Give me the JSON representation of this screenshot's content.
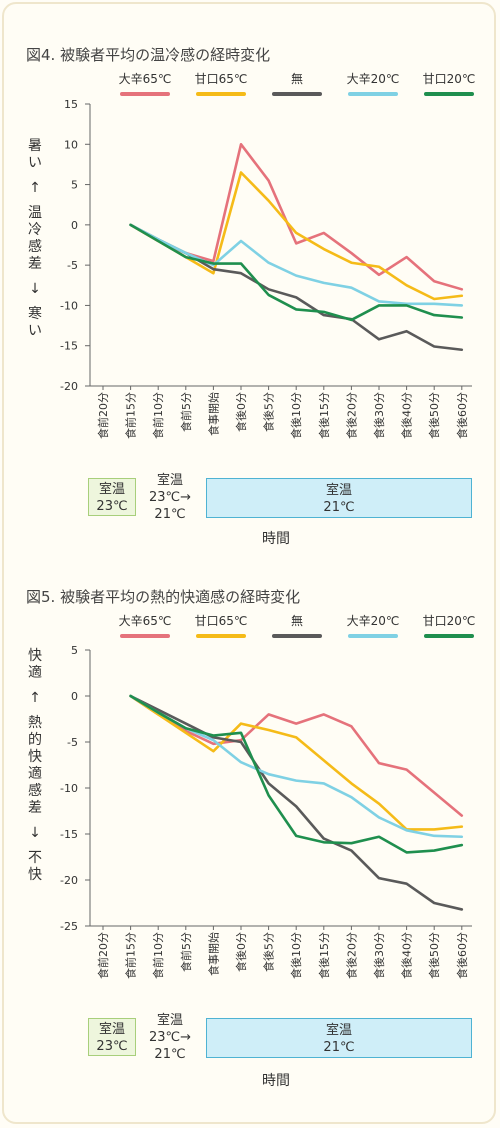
{
  "legend": [
    {
      "label": "大辛65℃",
      "color": "#e5727b"
    },
    {
      "label": "甘口65℃",
      "color": "#f5bb18"
    },
    {
      "label": "無",
      "color": "#5a5a5a"
    },
    {
      "label": "大辛20℃",
      "color": "#7fd1e4"
    },
    {
      "label": "甘口20℃",
      "color": "#1f8f4e"
    }
  ],
  "x_categories": [
    "食前20分",
    "食前15分",
    "食前10分",
    "食前5分",
    "食事開始",
    "食後0分",
    "食後5分",
    "食後10分",
    "食後15分",
    "食後20分",
    "食後30分",
    "食後40分",
    "食後50分",
    "食後60分"
  ],
  "phase_labels": {
    "a": [
      "室温",
      "23℃"
    ],
    "b": [
      "室温",
      "23℃→",
      "21℃"
    ],
    "c": [
      "室温",
      "21℃"
    ]
  },
  "xlabel": "時間",
  "chart_data": [
    {
      "type": "line",
      "title": "図4. 被験者平均の温冷感の経時変化",
      "ylabel_top": "暑い",
      "ylabel_arrow_up": "↑",
      "ylabel_mid": "温冷感差",
      "ylabel_arrow_down": "↓",
      "ylabel_bottom": "寒い",
      "ylim": [
        -20,
        15
      ],
      "yticks": [
        15,
        10,
        5,
        0,
        -5,
        -10,
        -15,
        -20
      ],
      "series": [
        {
          "name": "大辛65℃",
          "color": "#e5727b",
          "values": [
            null,
            0,
            -2,
            -3.5,
            -4.5,
            10,
            5.5,
            -2.3,
            -1,
            -3.5,
            -6.2,
            -4,
            -7,
            -8
          ]
        },
        {
          "name": "甘口65℃",
          "color": "#f5bb18",
          "values": [
            null,
            0,
            -2,
            -4,
            -6,
            6.5,
            3,
            -1,
            -3,
            -4.7,
            -5.2,
            -7.5,
            -9.2,
            -8.8
          ]
        },
        {
          "name": "無",
          "color": "#5a5a5a",
          "values": [
            null,
            0,
            -1.8,
            -3.5,
            -5.5,
            -6,
            -8,
            -9,
            -11.2,
            -11.7,
            -14.2,
            -13.2,
            -15.1,
            -15.5
          ]
        },
        {
          "name": "大辛20℃",
          "color": "#7fd1e4",
          "values": [
            null,
            0,
            -1.8,
            -3.5,
            -5,
            -2,
            -4.7,
            -6.3,
            -7.2,
            -7.8,
            -9.5,
            -9.8,
            -9.8,
            -10
          ]
        },
        {
          "name": "甘口20℃",
          "color": "#1f8f4e",
          "values": [
            null,
            0,
            -2,
            -4,
            -4.8,
            -4.8,
            -8.7,
            -10.5,
            -10.8,
            -11.8,
            -10,
            -10,
            -11.2,
            -11.5
          ]
        }
      ]
    },
    {
      "type": "line",
      "title": "図5. 被験者平均の熱的快適感の経時変化",
      "ylabel_top": "快適",
      "ylabel_arrow_up": "↑",
      "ylabel_mid": "熱的快適感差",
      "ylabel_arrow_down": "↓",
      "ylabel_bottom": "不快",
      "ylim": [
        -25,
        5
      ],
      "yticks": [
        5,
        0,
        -5,
        -10,
        -15,
        -20,
        -25
      ],
      "series": [
        {
          "name": "大辛65℃",
          "color": "#e5727b",
          "values": [
            null,
            0,
            -2,
            -3.8,
            -5.2,
            -4.8,
            -2,
            -3,
            -2,
            -3.3,
            -7.3,
            -8,
            -10.5,
            -13
          ]
        },
        {
          "name": "甘口65℃",
          "color": "#f5bb18",
          "values": [
            null,
            0,
            -2,
            -4,
            -6,
            -3,
            -3.7,
            -4.5,
            -7,
            -9.5,
            -11.7,
            -14.5,
            -14.5,
            -14.2
          ]
        },
        {
          "name": "無",
          "color": "#5a5a5a",
          "values": [
            null,
            0,
            -1.5,
            -3,
            -4.5,
            -5,
            -9.5,
            -12,
            -15.5,
            -16.8,
            -19.8,
            -20.4,
            -22.5,
            -23.2
          ]
        },
        {
          "name": "大辛20℃",
          "color": "#7fd1e4",
          "values": [
            null,
            0,
            -1.8,
            -3.5,
            -4.8,
            -7.2,
            -8.5,
            -9.2,
            -9.5,
            -11,
            -13.2,
            -14.6,
            -15.2,
            -15.3
          ]
        },
        {
          "name": "甘口20℃",
          "color": "#1f8f4e",
          "values": [
            null,
            0,
            -1.8,
            -3.5,
            -4.3,
            -4,
            -10.8,
            -15.2,
            -15.9,
            -16,
            -15.3,
            -17,
            -16.8,
            -16.2
          ]
        }
      ]
    }
  ]
}
